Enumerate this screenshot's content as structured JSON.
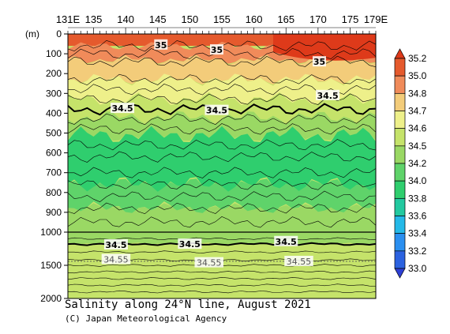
{
  "chart_data": {
    "type": "heatmap",
    "title": "Salinity along 24°N line, August 2021",
    "credit": "(C) Japan Meteorological Agency",
    "x_axis": {
      "ticks": [
        131,
        135,
        140,
        145,
        150,
        155,
        160,
        165,
        170,
        175,
        179
      ],
      "tick_labels": [
        "131E",
        "135",
        "140",
        "145",
        "150",
        "155",
        "160",
        "165",
        "170",
        "175",
        "179E"
      ],
      "range": [
        131,
        179
      ]
    },
    "y_axis": {
      "label": "(m)",
      "upper_ticks": [
        0,
        100,
        200,
        300,
        400,
        500,
        600,
        700,
        800,
        900,
        1000
      ],
      "lower_ticks": [
        1500,
        2000
      ],
      "tick_labels": [
        "0",
        "100",
        "200",
        "300",
        "400",
        "500",
        "600",
        "700",
        "800",
        "900",
        "1000",
        "1500",
        "2000"
      ],
      "range": [
        0,
        2000
      ],
      "scale_break": 1000
    },
    "colorbar": {
      "levels": [
        33.0,
        33.2,
        33.4,
        33.6,
        33.8,
        34.0,
        34.2,
        34.5,
        34.6,
        34.7,
        34.8,
        35.0,
        35.2
      ],
      "labels": [
        "33.0",
        "33.2",
        "33.4",
        "33.6",
        "33.8",
        "34.0",
        "34.2",
        "34.5",
        "34.6",
        "34.7",
        "34.8",
        "35.0",
        "35.2"
      ],
      "colors": [
        "#2d3fd4",
        "#2b62e0",
        "#2a8ff0",
        "#24b9e8",
        "#22c9a0",
        "#2fce6e",
        "#5fd36a",
        "#9ad864",
        "#c5e36a",
        "#eef08a",
        "#f3cc7a",
        "#f08b5a",
        "#e55a2d",
        "#de3a1a"
      ]
    },
    "contour_labels": [
      {
        "text": "35",
        "lon": 145.5,
        "depth": 55
      },
      {
        "text": "35",
        "lon": 154.2,
        "depth": 80
      },
      {
        "text": "35",
        "lon": 170.2,
        "depth": 140
      },
      {
        "text": "34.5",
        "lon": 139.5,
        "depth": 375
      },
      {
        "text": "34.5",
        "lon": 154.2,
        "depth": 385
      },
      {
        "text": "34.5",
        "lon": 171.5,
        "depth": 310
      },
      {
        "text": "34.5",
        "lon": 138.5,
        "depth": 1190
      },
      {
        "text": "34.5",
        "lon": 150.0,
        "depth": 1180
      },
      {
        "text": "34.5",
        "lon": 165.0,
        "depth": 1140
      },
      {
        "text": "34.55",
        "lon": 138.5,
        "depth": 1410
      },
      {
        "text": "34.55",
        "lon": 153.0,
        "depth": 1460
      },
      {
        "text": "34.55",
        "lon": 167.0,
        "depth": 1440
      }
    ]
  }
}
